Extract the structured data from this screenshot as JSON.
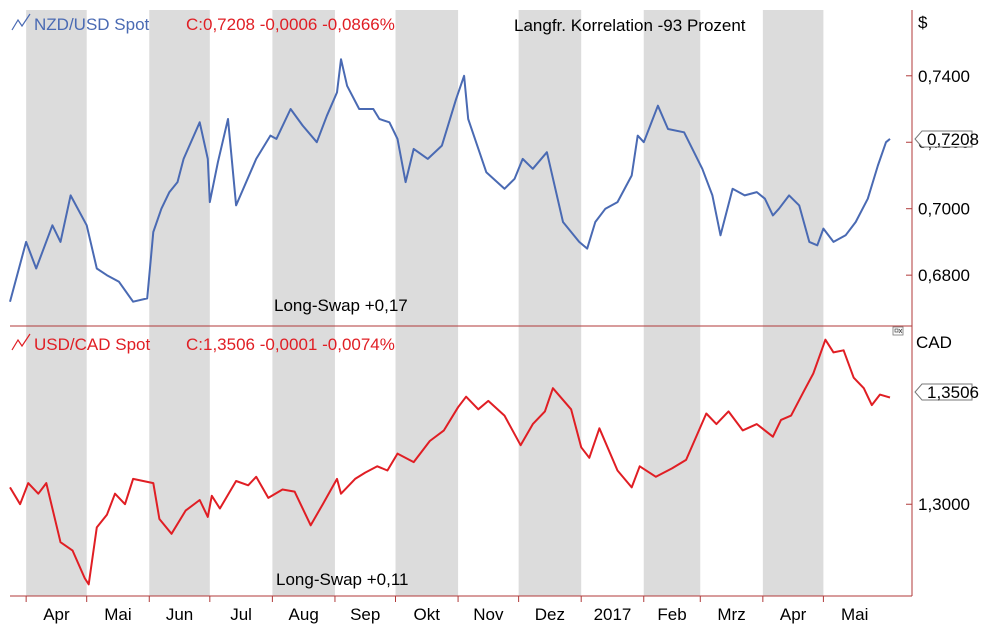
{
  "colors": {
    "nzd_line": "#4a6ab3",
    "cad_line": "#e01e24",
    "band": "#dcdcdc",
    "axis": "#b03a3a",
    "text": "#000000"
  },
  "x_months": [
    "Apr",
    "Mai",
    "Jun",
    "Jul",
    "Aug",
    "Sep",
    "Okt",
    "Nov",
    "Dez",
    "2017",
    "Feb",
    "Mrz",
    "Apr",
    "Mai"
  ],
  "chart_data": [
    {
      "type": "line",
      "title": "NZD/USD Spot",
      "quote": "C:0,7208 -0,0006 -0,0866%",
      "annotation": "Langfr. Korrelation -93 Prozent",
      "swap_label": "Long-Swap +0,17",
      "unit_label": "$",
      "last_value_label": "0,7208",
      "y_ticks": [
        "0,7400",
        "0,7200",
        "0,7000",
        "0,6800"
      ],
      "ylim": [
        0.6647,
        0.7598
      ],
      "x": [
        "2016-03-24",
        "2016-04-01",
        "2016-04-06",
        "2016-04-14",
        "2016-04-18",
        "2016-04-23",
        "2016-05-01",
        "2016-05-06",
        "2016-05-11",
        "2016-05-17",
        "2016-05-24",
        "2016-05-31",
        "2016-06-03",
        "2016-06-07",
        "2016-06-11",
        "2016-06-15",
        "2016-06-18",
        "2016-06-26",
        "2016-06-30",
        "2016-07-01",
        "2016-07-05",
        "2016-07-10",
        "2016-07-14",
        "2016-07-24",
        "2016-07-31",
        "2016-08-03",
        "2016-08-10",
        "2016-08-16",
        "2016-08-23",
        "2016-08-28",
        "2016-09-02",
        "2016-09-04",
        "2016-09-07",
        "2016-09-13",
        "2016-09-20",
        "2016-09-23",
        "2016-09-28",
        "2016-10-02",
        "2016-10-06",
        "2016-10-10",
        "2016-10-17",
        "2016-10-24",
        "2016-10-31",
        "2016-11-04",
        "2016-11-06",
        "2016-11-15",
        "2016-11-24",
        "2016-11-29",
        "2016-12-03",
        "2016-12-08",
        "2016-12-15",
        "2016-12-23",
        "2016-12-31",
        "2017-01-04",
        "2017-01-08",
        "2017-01-13",
        "2017-01-19",
        "2017-01-26",
        "2017-01-29",
        "2017-02-01",
        "2017-02-08",
        "2017-02-13",
        "2017-02-21",
        "2017-03-02",
        "2017-03-07",
        "2017-03-11",
        "2017-03-17",
        "2017-03-23",
        "2017-03-29",
        "2017-04-02",
        "2017-04-06",
        "2017-04-09",
        "2017-04-14",
        "2017-04-19",
        "2017-04-24",
        "2017-04-28",
        "2017-05-01",
        "2017-05-06",
        "2017-05-12",
        "2017-05-17",
        "2017-05-23",
        "2017-05-28",
        "2017-06-01",
        "2017-06-03"
      ],
      "values": [
        0.672,
        0.69,
        0.682,
        0.695,
        0.69,
        0.704,
        0.695,
        0.682,
        0.68,
        0.678,
        0.672,
        0.673,
        0.693,
        0.7,
        0.705,
        0.708,
        0.715,
        0.726,
        0.715,
        0.702,
        0.714,
        0.727,
        0.701,
        0.715,
        0.722,
        0.721,
        0.73,
        0.725,
        0.72,
        0.728,
        0.735,
        0.745,
        0.737,
        0.73,
        0.73,
        0.727,
        0.726,
        0.721,
        0.708,
        0.718,
        0.715,
        0.719,
        0.733,
        0.74,
        0.727,
        0.711,
        0.706,
        0.709,
        0.715,
        0.712,
        0.717,
        0.696,
        0.69,
        0.688,
        0.696,
        0.7,
        0.702,
        0.71,
        0.722,
        0.72,
        0.731,
        0.724,
        0.723,
        0.712,
        0.704,
        0.692,
        0.706,
        0.704,
        0.705,
        0.703,
        0.698,
        0.7,
        0.704,
        0.701,
        0.69,
        0.689,
        0.694,
        0.69,
        0.692,
        0.696,
        0.703,
        0.713,
        0.72,
        0.721
      ]
    },
    {
      "type": "line",
      "title": "USD/CAD Spot",
      "quote": "C:1,3506 -0,0001 -0,0074%",
      "swap_label": "Long-Swap +0,11",
      "unit_label": "CAD",
      "last_value_label": "1,3506",
      "y_ticks": [
        "1,3000"
      ],
      "ylim": [
        1.2565,
        1.3845
      ],
      "x": [
        "2016-03-24",
        "2016-03-29",
        "2016-04-02",
        "2016-04-07",
        "2016-04-11",
        "2016-04-18",
        "2016-04-24",
        "2016-04-30",
        "2016-05-02",
        "2016-05-06",
        "2016-05-11",
        "2016-05-15",
        "2016-05-20",
        "2016-05-24",
        "2016-06-03",
        "2016-06-06",
        "2016-06-12",
        "2016-06-19",
        "2016-06-26",
        "2016-06-30",
        "2016-07-02",
        "2016-07-06",
        "2016-07-14",
        "2016-07-20",
        "2016-07-24",
        "2016-07-30",
        "2016-08-06",
        "2016-08-12",
        "2016-08-20",
        "2016-08-26",
        "2016-09-02",
        "2016-09-04",
        "2016-09-11",
        "2016-09-16",
        "2016-09-22",
        "2016-09-27",
        "2016-10-02",
        "2016-10-10",
        "2016-10-18",
        "2016-10-25",
        "2016-11-01",
        "2016-11-05",
        "2016-11-11",
        "2016-11-16",
        "2016-11-24",
        "2016-12-02",
        "2016-12-08",
        "2016-12-14",
        "2016-12-18",
        "2016-12-27",
        "2017-01-01",
        "2017-01-05",
        "2017-01-10",
        "2017-01-19",
        "2017-01-26",
        "2017-01-30",
        "2017-02-07",
        "2017-02-15",
        "2017-02-22",
        "2017-03-04",
        "2017-03-09",
        "2017-03-15",
        "2017-03-22",
        "2017-03-29",
        "2017-04-06",
        "2017-04-10",
        "2017-04-15",
        "2017-04-21",
        "2017-04-26",
        "2017-05-02",
        "2017-05-06",
        "2017-05-11",
        "2017-05-16",
        "2017-05-21",
        "2017-05-25",
        "2017-05-29",
        "2017-06-03"
      ],
      "values": [
        1.308,
        1.3,
        1.31,
        1.305,
        1.31,
        1.282,
        1.278,
        1.265,
        1.262,
        1.289,
        1.295,
        1.305,
        1.3,
        1.312,
        1.31,
        1.293,
        1.286,
        1.297,
        1.302,
        1.294,
        1.304,
        1.298,
        1.311,
        1.309,
        1.313,
        1.303,
        1.307,
        1.306,
        1.29,
        1.3,
        1.312,
        1.305,
        1.312,
        1.315,
        1.318,
        1.316,
        1.324,
        1.32,
        1.33,
        1.335,
        1.346,
        1.351,
        1.345,
        1.349,
        1.342,
        1.328,
        1.338,
        1.344,
        1.355,
        1.345,
        1.327,
        1.322,
        1.336,
        1.316,
        1.308,
        1.318,
        1.313,
        1.317,
        1.321,
        1.343,
        1.338,
        1.344,
        1.335,
        1.338,
        1.332,
        1.34,
        1.342,
        1.353,
        1.362,
        1.378,
        1.372,
        1.373,
        1.36,
        1.355,
        1.347,
        1.352,
        1.3506
      ]
    }
  ]
}
